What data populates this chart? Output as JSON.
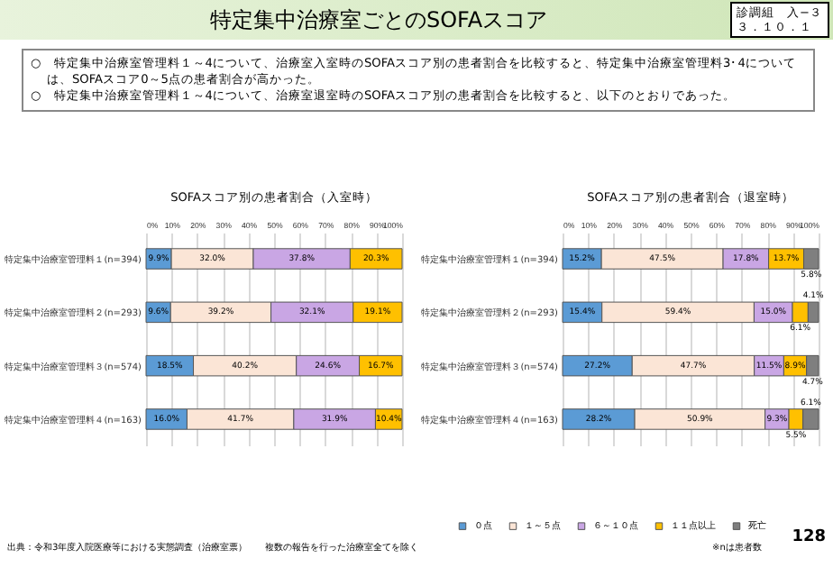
{
  "chart_data": [
    {
      "type": "other",
      "title": "特定集中治療室ごとのSOFAスコア",
      "annotations": [
        "診調組　入−３",
        "３．１０．１",
        "○　特定集中治療室管理料１～4について、治療室入室時のSOFAスコア別の患者割合を比較すると、特定集中治療室管理料3･4については、SOFAスコア0～5点の患者割合が高かった。",
        "○　特定集中治療室管理料１～4について、治療室退室時のSOFAスコア別の患者割合を比較すると、以下のとおりであった。",
        "出典：令和3年度入院医療等における実態調査（治療室票）　　複数の報告を行った治療室全てを除く",
        "※nは患者数",
        "128"
      ]
    },
    {
      "type": "bar",
      "orientation": "horizontal",
      "stacked": true,
      "title": "SOFAスコア別の患者割合（入室時）",
      "categories": [
        "特定集中治療室管理料１(n=394)",
        "特定集中治療室管理料２(n=293)",
        "特定集中治療室管理料３(n=574)",
        "特定集中治療室管理料４(n=163)"
      ],
      "series": [
        {
          "color": "#5b9bd5",
          "values": [
            9.9,
            9.6,
            18.5,
            16.0
          ],
          "value_labels": [
            "9.9%",
            "9.6%",
            "18.5%",
            "16.0%"
          ]
        },
        {
          "color": "#fbe5d6",
          "values": [
            32.0,
            39.2,
            40.2,
            41.7
          ],
          "value_labels": [
            "32.0%",
            "39.2%",
            "40.2%",
            "41.7%"
          ]
        },
        {
          "color": "#c9a6e4",
          "values": [
            37.8,
            32.1,
            24.6,
            31.9
          ],
          "value_labels": [
            "37.8%",
            "32.1%",
            "24.6%",
            "31.9%"
          ]
        },
        {
          "color": "#ffc000",
          "values": [
            20.3,
            19.1,
            16.7,
            10.4
          ],
          "value_labels": [
            "20.3%",
            "19.1%",
            "16.7%",
            "10.4%"
          ]
        }
      ],
      "xlim": [
        0,
        100
      ],
      "xticks": [
        {
          "value": 0,
          "label": "0%"
        },
        {
          "value": 10,
          "label": "10%"
        },
        {
          "value": 20,
          "label": "20%"
        },
        {
          "value": 30,
          "label": "30%"
        },
        {
          "value": 40,
          "label": "40%"
        },
        {
          "value": 50,
          "label": "50%"
        },
        {
          "value": 60,
          "label": "60%"
        },
        {
          "value": 70,
          "label": "70%"
        },
        {
          "value": 80,
          "label": "80%"
        },
        {
          "value": 90,
          "label": "90%"
        },
        {
          "value": 100,
          "label": "100%"
        }
      ],
      "grid": "x"
    },
    {
      "type": "bar",
      "orientation": "horizontal",
      "stacked": true,
      "title": "SOFAスコア別の患者割合（退室時）",
      "categories": [
        "特定集中治療室管理料１(n=394)",
        "特定集中治療室管理料２(n=293)",
        "特定集中治療室管理料３(n=574)",
        "特定集中治療室管理料４(n=163)"
      ],
      "series": [
        {
          "name": "０点",
          "color": "#5b9bd5",
          "values": [
            15.2,
            15.4,
            27.2,
            28.2
          ],
          "value_labels": [
            "15.2%",
            "15.4%",
            "27.2%",
            "28.2%"
          ]
        },
        {
          "name": "１～５点",
          "color": "#fbe5d6",
          "values": [
            47.5,
            59.4,
            47.7,
            50.9
          ],
          "value_labels": [
            "47.5%",
            "59.4%",
            "47.7%",
            "50.9%"
          ]
        },
        {
          "name": "６～１０点",
          "color": "#c9a6e4",
          "values": [
            17.8,
            15.0,
            11.5,
            9.3
          ],
          "value_labels": [
            "17.8%",
            "15.0%",
            "11.5%",
            "9.3%"
          ]
        },
        {
          "name": "１１点以上",
          "color": "#ffc000",
          "values": [
            13.7,
            6.1,
            8.9,
            5.5
          ],
          "value_labels": [
            "13.7%",
            "6.1%",
            "8.9%",
            "5.5%"
          ]
        },
        {
          "name": "死亡",
          "color": "#7f7f7f",
          "values": [
            5.8,
            4.1,
            4.7,
            6.1
          ],
          "value_labels": [
            "5.8%",
            "4.1%",
            "4.7%",
            "6.1%"
          ]
        }
      ],
      "xlim": [
        0,
        100
      ],
      "xticks": [
        {
          "value": 0,
          "label": "0%"
        },
        {
          "value": 10,
          "label": "10%"
        },
        {
          "value": 20,
          "label": "20%"
        },
        {
          "value": 30,
          "label": "30%"
        },
        {
          "value": 40,
          "label": "40%"
        },
        {
          "value": 50,
          "label": "50%"
        },
        {
          "value": 60,
          "label": "60%"
        },
        {
          "value": 70,
          "label": "70%"
        },
        {
          "value": 80,
          "label": "80%"
        },
        {
          "value": 90,
          "label": "90%"
        },
        {
          "value": 100,
          "label": "100%"
        }
      ],
      "grid": "x",
      "legend": "bottom"
    }
  ]
}
